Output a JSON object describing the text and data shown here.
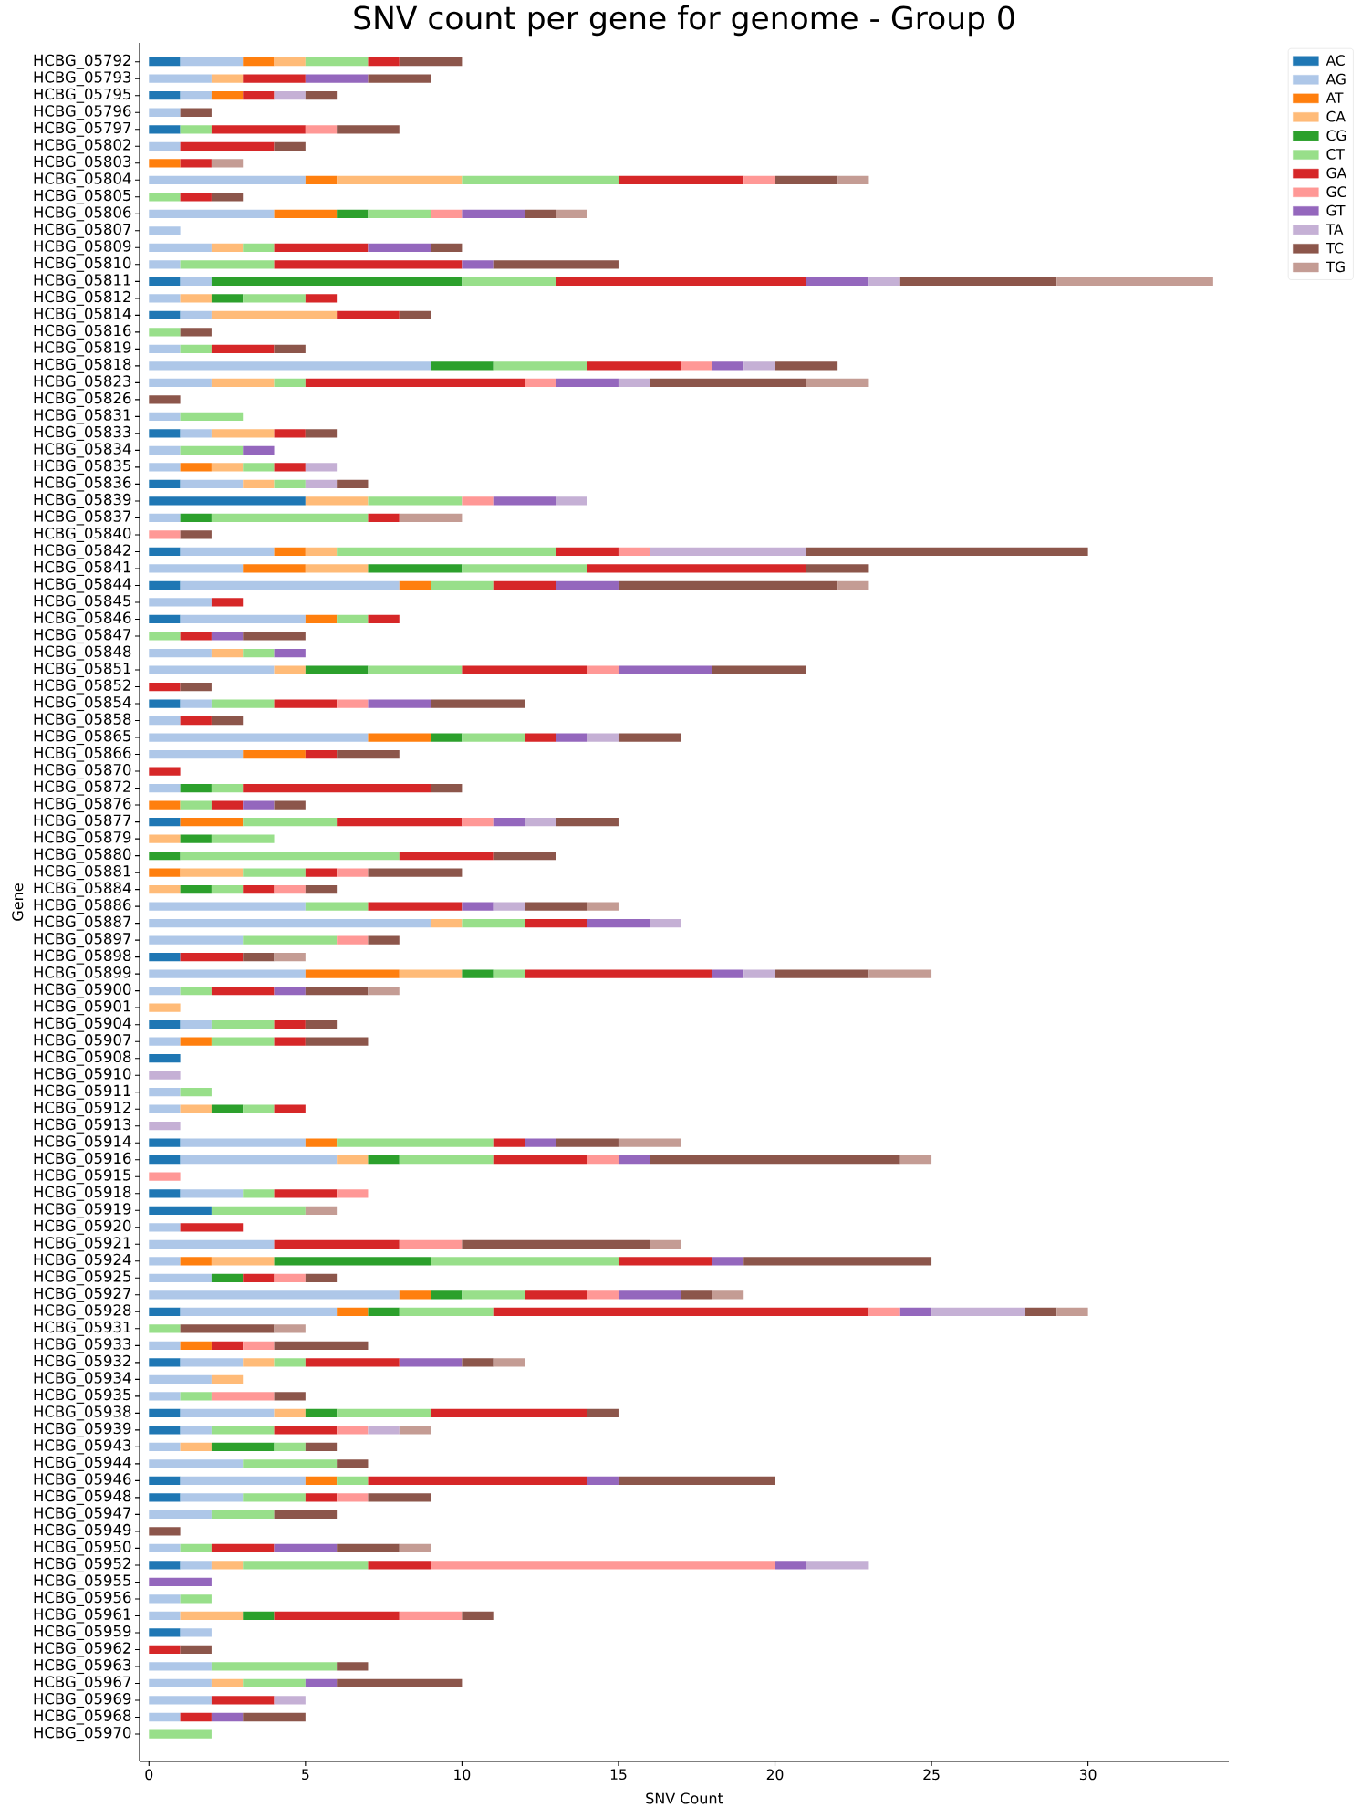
{
  "chart_data": {
    "type": "bar",
    "orientation": "horizontal",
    "stacked": true,
    "title": "SNV count per gene for genome - Group 0",
    "xlabel": "SNV Count",
    "ylabel": "Gene",
    "categories": [
      "HCBG_05792",
      "HCBG_05793",
      "HCBG_05795",
      "HCBG_05796",
      "HCBG_05797",
      "HCBG_05802",
      "HCBG_05803",
      "HCBG_05804",
      "HCBG_05805",
      "HCBG_05806",
      "HCBG_05807",
      "HCBG_05809",
      "HCBG_05810",
      "HCBG_05811",
      "HCBG_05812",
      "HCBG_05814",
      "HCBG_05816",
      "HCBG_05819",
      "HCBG_05818",
      "HCBG_05823",
      "HCBG_05826",
      "HCBG_05831",
      "HCBG_05833",
      "HCBG_05834",
      "HCBG_05835",
      "HCBG_05836",
      "HCBG_05839",
      "HCBG_05837",
      "HCBG_05840",
      "HCBG_05842",
      "HCBG_05841",
      "HCBG_05844",
      "HCBG_05845",
      "HCBG_05846",
      "HCBG_05847",
      "HCBG_05848",
      "HCBG_05851",
      "HCBG_05852",
      "HCBG_05854",
      "HCBG_05858",
      "HCBG_05865",
      "HCBG_05866",
      "HCBG_05870",
      "HCBG_05872",
      "HCBG_05876",
      "HCBG_05877",
      "HCBG_05879",
      "HCBG_05880",
      "HCBG_05881",
      "HCBG_05884",
      "HCBG_05886",
      "HCBG_05887",
      "HCBG_05897",
      "HCBG_05898",
      "HCBG_05899",
      "HCBG_05900",
      "HCBG_05901",
      "HCBG_05904",
      "HCBG_05907",
      "HCBG_05908",
      "HCBG_05910",
      "HCBG_05911",
      "HCBG_05912",
      "HCBG_05913",
      "HCBG_05914",
      "HCBG_05916",
      "HCBG_05915",
      "HCBG_05918",
      "HCBG_05919",
      "HCBG_05920",
      "HCBG_05921",
      "HCBG_05924",
      "HCBG_05925",
      "HCBG_05927",
      "HCBG_05928",
      "HCBG_05931",
      "HCBG_05933",
      "HCBG_05932",
      "HCBG_05934",
      "HCBG_05935",
      "HCBG_05938",
      "HCBG_05939",
      "HCBG_05943",
      "HCBG_05944",
      "HCBG_05946",
      "HCBG_05948",
      "HCBG_05947",
      "HCBG_05949",
      "HCBG_05950",
      "HCBG_05952",
      "HCBG_05955",
      "HCBG_05956",
      "HCBG_05961",
      "HCBG_05959",
      "HCBG_05962",
      "HCBG_05963",
      "HCBG_05967",
      "HCBG_05969",
      "HCBG_05968",
      "HCBG_05970"
    ],
    "series": [
      {
        "name": "AC",
        "color": "#1f77b4",
        "values": [
          1,
          null,
          1,
          null,
          1,
          null,
          null,
          null,
          null,
          null,
          null,
          null,
          null,
          1,
          null,
          1,
          null,
          null,
          null,
          null,
          null,
          null,
          1,
          null,
          null,
          1,
          5,
          null,
          null,
          1,
          null,
          1,
          null,
          1,
          null,
          null,
          null,
          null,
          1,
          null,
          null,
          null,
          null,
          null,
          null,
          1,
          null,
          null,
          null,
          null,
          null,
          null,
          null,
          1,
          null,
          null,
          null,
          1,
          null,
          1,
          null,
          null,
          null,
          null,
          1,
          1,
          null,
          1,
          2,
          null,
          null,
          null,
          null,
          null,
          1,
          null,
          null,
          1,
          null,
          null,
          1,
          1,
          null,
          null,
          1,
          1,
          null,
          null,
          null,
          1,
          null,
          null,
          null,
          1,
          null,
          null,
          null,
          null,
          null,
          null
        ]
      },
      {
        "name": "AG",
        "color": "#aec7e8",
        "values": [
          2,
          2,
          1,
          1,
          null,
          1,
          null,
          5,
          null,
          4,
          1,
          2,
          1,
          1,
          1,
          1,
          null,
          1,
          9,
          2,
          null,
          1,
          1,
          1,
          1,
          2,
          null,
          1,
          null,
          3,
          3,
          7,
          2,
          4,
          null,
          2,
          4,
          null,
          1,
          1,
          7,
          3,
          null,
          1,
          null,
          null,
          null,
          null,
          null,
          null,
          5,
          9,
          3,
          null,
          5,
          1,
          null,
          1,
          1,
          null,
          null,
          1,
          1,
          null,
          4,
          5,
          null,
          2,
          null,
          1,
          4,
          1,
          2,
          8,
          5,
          null,
          1,
          2,
          2,
          1,
          3,
          1,
          1,
          3,
          4,
          2,
          2,
          null,
          1,
          1,
          null,
          1,
          1,
          1,
          null,
          2,
          2,
          2,
          1,
          null
        ]
      },
      {
        "name": "AT",
        "color": "#ff7f0e",
        "values": [
          1,
          null,
          1,
          null,
          null,
          null,
          1,
          1,
          null,
          2,
          null,
          null,
          null,
          null,
          null,
          null,
          null,
          null,
          null,
          null,
          null,
          null,
          null,
          null,
          1,
          null,
          null,
          null,
          null,
          1,
          2,
          1,
          null,
          1,
          null,
          null,
          null,
          null,
          null,
          null,
          2,
          2,
          null,
          null,
          1,
          2,
          null,
          null,
          1,
          null,
          null,
          null,
          null,
          null,
          3,
          null,
          null,
          null,
          1,
          null,
          null,
          null,
          null,
          null,
          1,
          null,
          null,
          null,
          null,
          null,
          null,
          1,
          null,
          1,
          1,
          null,
          1,
          null,
          null,
          null,
          null,
          null,
          null,
          null,
          1,
          null,
          null,
          null,
          null,
          null,
          null,
          null,
          null,
          null,
          null,
          null,
          null,
          null,
          null,
          null
        ]
      },
      {
        "name": "CA",
        "color": "#ffbb78",
        "values": [
          1,
          1,
          null,
          null,
          null,
          null,
          null,
          4,
          null,
          null,
          null,
          1,
          null,
          null,
          1,
          4,
          null,
          null,
          null,
          2,
          null,
          null,
          2,
          null,
          1,
          1,
          2,
          null,
          null,
          1,
          2,
          null,
          null,
          null,
          null,
          1,
          1,
          null,
          null,
          null,
          null,
          null,
          null,
          null,
          null,
          null,
          1,
          null,
          2,
          1,
          null,
          1,
          null,
          null,
          2,
          null,
          1,
          null,
          null,
          null,
          null,
          null,
          1,
          null,
          null,
          1,
          null,
          null,
          null,
          null,
          null,
          2,
          null,
          null,
          null,
          null,
          null,
          1,
          1,
          null,
          1,
          null,
          1,
          null,
          null,
          null,
          null,
          null,
          null,
          1,
          null,
          null,
          2,
          null,
          null,
          null,
          1,
          null,
          null,
          null
        ]
      },
      {
        "name": "CG",
        "color": "#2ca02c",
        "values": [
          null,
          null,
          null,
          null,
          null,
          null,
          null,
          null,
          null,
          1,
          null,
          null,
          null,
          8,
          1,
          null,
          null,
          null,
          2,
          null,
          null,
          null,
          null,
          null,
          null,
          null,
          null,
          1,
          null,
          null,
          3,
          null,
          null,
          null,
          null,
          null,
          2,
          null,
          null,
          null,
          1,
          null,
          null,
          1,
          null,
          null,
          1,
          1,
          null,
          1,
          null,
          null,
          null,
          null,
          1,
          null,
          null,
          null,
          null,
          null,
          null,
          null,
          1,
          null,
          null,
          1,
          null,
          null,
          null,
          null,
          null,
          5,
          1,
          1,
          1,
          null,
          null,
          null,
          null,
          null,
          1,
          null,
          2,
          null,
          null,
          null,
          null,
          null,
          null,
          null,
          null,
          null,
          1,
          null,
          null,
          null,
          null,
          null,
          null,
          null
        ]
      },
      {
        "name": "CT",
        "color": "#98df8a",
        "values": [
          2,
          null,
          null,
          null,
          1,
          null,
          null,
          5,
          1,
          2,
          null,
          1,
          3,
          3,
          2,
          null,
          1,
          1,
          3,
          1,
          null,
          2,
          null,
          2,
          1,
          1,
          3,
          5,
          null,
          7,
          4,
          2,
          null,
          1,
          1,
          1,
          3,
          null,
          2,
          null,
          2,
          null,
          null,
          1,
          1,
          3,
          2,
          7,
          2,
          1,
          2,
          2,
          3,
          null,
          1,
          1,
          null,
          2,
          2,
          null,
          null,
          1,
          1,
          null,
          5,
          3,
          null,
          1,
          3,
          null,
          null,
          6,
          null,
          2,
          3,
          1,
          null,
          1,
          null,
          1,
          3,
          2,
          1,
          3,
          1,
          2,
          2,
          null,
          1,
          4,
          null,
          1,
          null,
          null,
          null,
          4,
          2,
          null,
          null,
          2
        ]
      },
      {
        "name": "GA",
        "color": "#d62728",
        "values": [
          1,
          2,
          1,
          null,
          3,
          3,
          1,
          4,
          1,
          null,
          null,
          3,
          6,
          8,
          1,
          2,
          null,
          2,
          3,
          7,
          null,
          null,
          1,
          null,
          1,
          null,
          null,
          1,
          null,
          2,
          7,
          2,
          1,
          1,
          1,
          null,
          4,
          1,
          2,
          1,
          1,
          1,
          1,
          6,
          1,
          4,
          null,
          3,
          1,
          1,
          3,
          2,
          null,
          2,
          6,
          2,
          null,
          1,
          1,
          null,
          null,
          null,
          1,
          null,
          1,
          3,
          null,
          2,
          null,
          2,
          4,
          3,
          1,
          2,
          12,
          null,
          1,
          3,
          null,
          null,
          5,
          2,
          null,
          null,
          7,
          1,
          null,
          null,
          2,
          2,
          null,
          null,
          4,
          null,
          1,
          null,
          null,
          2,
          1,
          null
        ]
      },
      {
        "name": "GC",
        "color": "#ff9896",
        "values": [
          null,
          null,
          null,
          null,
          1,
          null,
          null,
          1,
          null,
          1,
          null,
          null,
          null,
          null,
          null,
          null,
          null,
          null,
          1,
          1,
          null,
          null,
          null,
          null,
          null,
          null,
          1,
          null,
          1,
          1,
          null,
          null,
          null,
          null,
          null,
          null,
          1,
          null,
          1,
          null,
          null,
          null,
          null,
          null,
          null,
          1,
          null,
          null,
          1,
          1,
          null,
          null,
          1,
          null,
          null,
          null,
          null,
          null,
          null,
          null,
          null,
          null,
          null,
          null,
          null,
          1,
          1,
          1,
          null,
          null,
          2,
          null,
          1,
          1,
          1,
          null,
          1,
          null,
          null,
          2,
          null,
          1,
          null,
          null,
          null,
          1,
          null,
          null,
          null,
          11,
          null,
          null,
          2,
          null,
          null,
          null,
          null,
          null,
          null,
          null
        ]
      },
      {
        "name": "GT",
        "color": "#9467bd",
        "values": [
          null,
          2,
          null,
          null,
          null,
          null,
          null,
          null,
          null,
          2,
          null,
          2,
          1,
          2,
          null,
          null,
          null,
          null,
          1,
          2,
          null,
          null,
          null,
          1,
          null,
          null,
          2,
          null,
          null,
          null,
          null,
          2,
          null,
          null,
          1,
          1,
          3,
          null,
          2,
          null,
          1,
          null,
          null,
          null,
          1,
          1,
          null,
          null,
          null,
          null,
          1,
          2,
          null,
          null,
          1,
          1,
          null,
          null,
          null,
          null,
          null,
          null,
          null,
          null,
          1,
          1,
          null,
          null,
          null,
          null,
          null,
          1,
          null,
          2,
          1,
          null,
          null,
          2,
          null,
          null,
          null,
          null,
          null,
          null,
          1,
          null,
          null,
          null,
          2,
          1,
          2,
          null,
          null,
          null,
          null,
          null,
          1,
          null,
          1,
          null
        ]
      },
      {
        "name": "TA",
        "color": "#c5b0d5",
        "values": [
          null,
          null,
          1,
          null,
          null,
          null,
          null,
          null,
          null,
          null,
          null,
          null,
          null,
          1,
          null,
          null,
          null,
          null,
          1,
          1,
          null,
          null,
          null,
          null,
          1,
          1,
          1,
          null,
          null,
          5,
          null,
          null,
          null,
          null,
          null,
          null,
          null,
          null,
          null,
          null,
          1,
          null,
          null,
          null,
          null,
          1,
          null,
          null,
          null,
          null,
          1,
          1,
          null,
          null,
          1,
          null,
          null,
          null,
          null,
          null,
          1,
          null,
          null,
          1,
          null,
          null,
          null,
          null,
          null,
          null,
          null,
          null,
          null,
          null,
          3,
          null,
          null,
          null,
          null,
          null,
          null,
          1,
          null,
          null,
          null,
          null,
          null,
          null,
          null,
          2,
          null,
          null,
          null,
          null,
          null,
          null,
          null,
          1,
          null,
          null
        ]
      },
      {
        "name": "TC",
        "color": "#8c564b",
        "values": [
          2,
          2,
          1,
          1,
          2,
          1,
          null,
          2,
          1,
          1,
          null,
          1,
          4,
          5,
          null,
          1,
          1,
          1,
          2,
          5,
          1,
          null,
          1,
          null,
          null,
          1,
          null,
          null,
          1,
          9,
          2,
          7,
          null,
          null,
          2,
          null,
          3,
          1,
          3,
          1,
          2,
          2,
          null,
          1,
          1,
          2,
          null,
          2,
          3,
          1,
          2,
          null,
          1,
          1,
          3,
          2,
          null,
          1,
          2,
          null,
          null,
          null,
          null,
          null,
          2,
          8,
          null,
          null,
          null,
          null,
          6,
          6,
          1,
          1,
          1,
          3,
          3,
          1,
          null,
          1,
          1,
          null,
          1,
          1,
          5,
          2,
          2,
          1,
          2,
          null,
          null,
          null,
          1,
          null,
          1,
          1,
          4,
          null,
          2,
          null
        ]
      },
      {
        "name": "TG",
        "color": "#c49c94",
        "values": [
          null,
          null,
          null,
          null,
          null,
          null,
          1,
          1,
          null,
          1,
          null,
          null,
          null,
          5,
          null,
          null,
          null,
          null,
          null,
          2,
          null,
          null,
          null,
          null,
          null,
          null,
          null,
          2,
          null,
          null,
          null,
          1,
          null,
          null,
          null,
          null,
          null,
          null,
          null,
          null,
          null,
          null,
          null,
          null,
          null,
          null,
          null,
          null,
          null,
          null,
          1,
          null,
          null,
          1,
          2,
          1,
          null,
          null,
          null,
          null,
          null,
          null,
          null,
          null,
          2,
          1,
          null,
          null,
          1,
          null,
          1,
          null,
          null,
          1,
          1,
          1,
          null,
          1,
          null,
          null,
          null,
          1,
          null,
          null,
          null,
          null,
          null,
          null,
          1,
          null,
          null,
          null,
          null,
          null,
          null,
          null,
          null,
          null,
          null,
          null
        ]
      }
    ],
    "xlim": [
      -0.3,
      34.5
    ],
    "xticks": [
      0,
      5,
      10,
      15,
      20,
      25,
      30
    ],
    "legend": "top right"
  }
}
